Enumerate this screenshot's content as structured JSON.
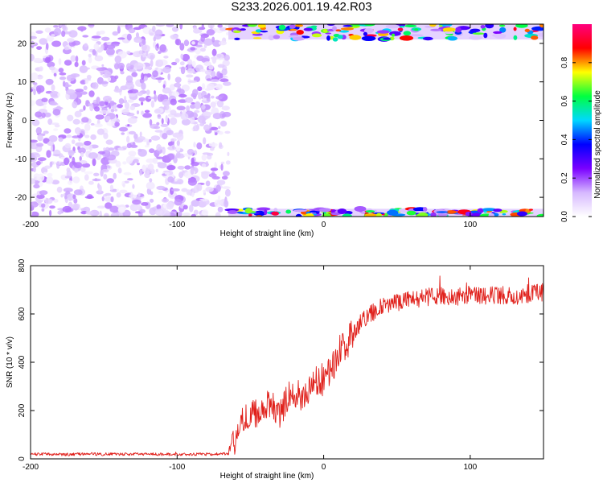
{
  "title": "S233.2026.001.19.42.R03",
  "chart_data": [
    {
      "type": "heatmap",
      "xlabel": "Height of straight line (km)",
      "ylabel": "Frequency (Hz)",
      "xlim": [
        -200,
        150
      ],
      "ylim": [
        -25,
        25
      ],
      "x_ticks": [
        -200,
        -100,
        0,
        100
      ],
      "y_ticks": [
        -20,
        -10,
        0,
        10,
        20
      ],
      "colorbar": {
        "label": "Normalized spectral amplitude",
        "range": [
          0,
          1
        ],
        "ticks": [
          0.0,
          0.2,
          0.4,
          0.6,
          0.8
        ],
        "tick_labels": [
          "0.0",
          "0.2",
          "0.4",
          "0.6",
          "0.8"
        ],
        "colors": [
          "#ffffff",
          "#d6b8ff",
          "#7a00ff",
          "#0000ff",
          "#00d8ff",
          "#00ff40",
          "#ffff00",
          "#ff0000",
          "#ff007f"
        ]
      },
      "regions": [
        {
          "description": "scattered low-amplitude noise blobs",
          "x_range": [
            -200,
            -65
          ],
          "y_range": [
            -25,
            25
          ],
          "amplitude_range": [
            0.02,
            0.18
          ]
        },
        {
          "description": "high-amplitude band along upper frequency edge",
          "x_range": [
            -65,
            150
          ],
          "y_range": [
            21,
            25
          ],
          "peak_amplitude": 0.95
        },
        {
          "description": "high-amplitude band along lower frequency edge",
          "x_range": [
            -65,
            150
          ],
          "y_range": [
            -25,
            -23
          ],
          "peak_amplitude": 0.95
        }
      ]
    },
    {
      "type": "line",
      "xlabel": "Height of straight line (km)",
      "ylabel": "SNR (10 * v/v)",
      "xlim": [
        -200,
        150
      ],
      "ylim": [
        0,
        800
      ],
      "x_ticks": [
        -200,
        -100,
        0,
        100
      ],
      "y_ticks": [
        0,
        200,
        400,
        600,
        800
      ],
      "series": [
        {
          "color": "#e0201b",
          "x": [
            -200,
            -180,
            -160,
            -140,
            -120,
            -100,
            -80,
            -65,
            -60,
            -55,
            -50,
            -45,
            -40,
            -35,
            -30,
            -25,
            -20,
            -15,
            -10,
            -5,
            0,
            5,
            10,
            15,
            20,
            25,
            30,
            35,
            40,
            50,
            60,
            70,
            80,
            90,
            100,
            110,
            120,
            130,
            140,
            150
          ],
          "y": [
            20,
            18,
            20,
            19,
            20,
            18,
            19,
            22,
            80,
            170,
            180,
            190,
            230,
            220,
            180,
            250,
            280,
            250,
            280,
            320,
            330,
            370,
            420,
            470,
            520,
            560,
            590,
            610,
            630,
            650,
            660,
            670,
            675,
            670,
            680,
            675,
            680,
            675,
            680,
            690
          ]
        }
      ]
    }
  ]
}
